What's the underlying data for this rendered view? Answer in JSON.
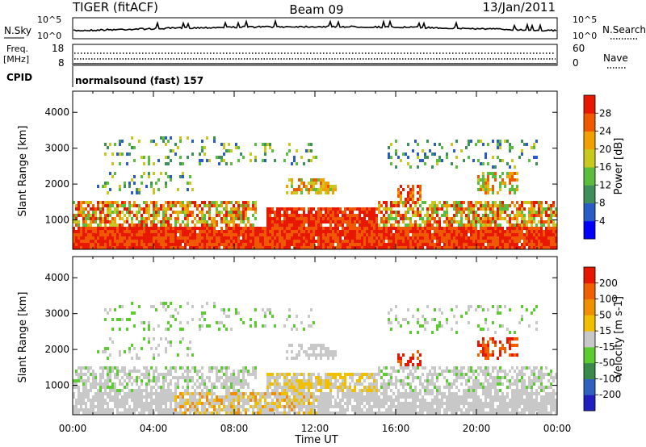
{
  "header": {
    "radar_name": "TIGER (fitACF)",
    "beam": "Beam 09",
    "date": "13/Jan/2011"
  },
  "status_panels": {
    "nsky_label": "N.Sky",
    "nsearch_label": "N.Search",
    "nsky_scale_top": "10^5",
    "nsky_scale_bottom": "10^0",
    "freq_label_line1": "Freq.",
    "freq_label_line2": "[MHz]",
    "freq_ticks": [
      "18",
      "8"
    ],
    "nave_label": "Nave",
    "nave_ticks": [
      "60",
      "0"
    ],
    "cpid_label": "CPID",
    "cpid_text": "normalsound (fast) 157"
  },
  "chart_data": [
    {
      "type": "heatmap",
      "title": "",
      "panel": "power",
      "ylabel": "Slant Range [km]",
      "ylim": [
        180,
        4590
      ],
      "yticks": [
        1000,
        2000,
        3000,
        4000
      ],
      "xlim": [
        0,
        24
      ],
      "colorbar": {
        "label": "Power [dB]",
        "ticks": [
          "4",
          "8",
          "12",
          "16",
          "20",
          "24",
          "28"
        ],
        "colors": [
          "#0000ff",
          "#2a5cc8",
          "#3f8f5a",
          "#5bbd3c",
          "#c8c820",
          "#f0a000",
          "#f05800",
          "#e81800"
        ],
        "range": [
          0,
          32
        ]
      }
    },
    {
      "type": "heatmap",
      "title": "",
      "panel": "velocity",
      "ylabel": "Slant Range [km]",
      "ylim": [
        180,
        4590
      ],
      "yticks": [
        1000,
        2000,
        3000,
        4000
      ],
      "xlim": [
        0,
        24
      ],
      "xlabel": "Time UT",
      "xticks": [
        "00:00",
        "04:00",
        "08:00",
        "12:00",
        "16:00",
        "20:00",
        "00:00"
      ],
      "colorbar": {
        "label": "Velocity [m s-1]",
        "ticks": [
          "200",
          "100",
          "50",
          "15",
          "-15",
          "-50",
          "-100",
          "-200"
        ],
        "colors": [
          "#2020c0",
          "#3060c0",
          "#3a8a4a",
          "#5ccc30",
          "#c8c8c8",
          "#f0c000",
          "#f09000",
          "#f06000",
          "#e81800"
        ]
      }
    }
  ]
}
